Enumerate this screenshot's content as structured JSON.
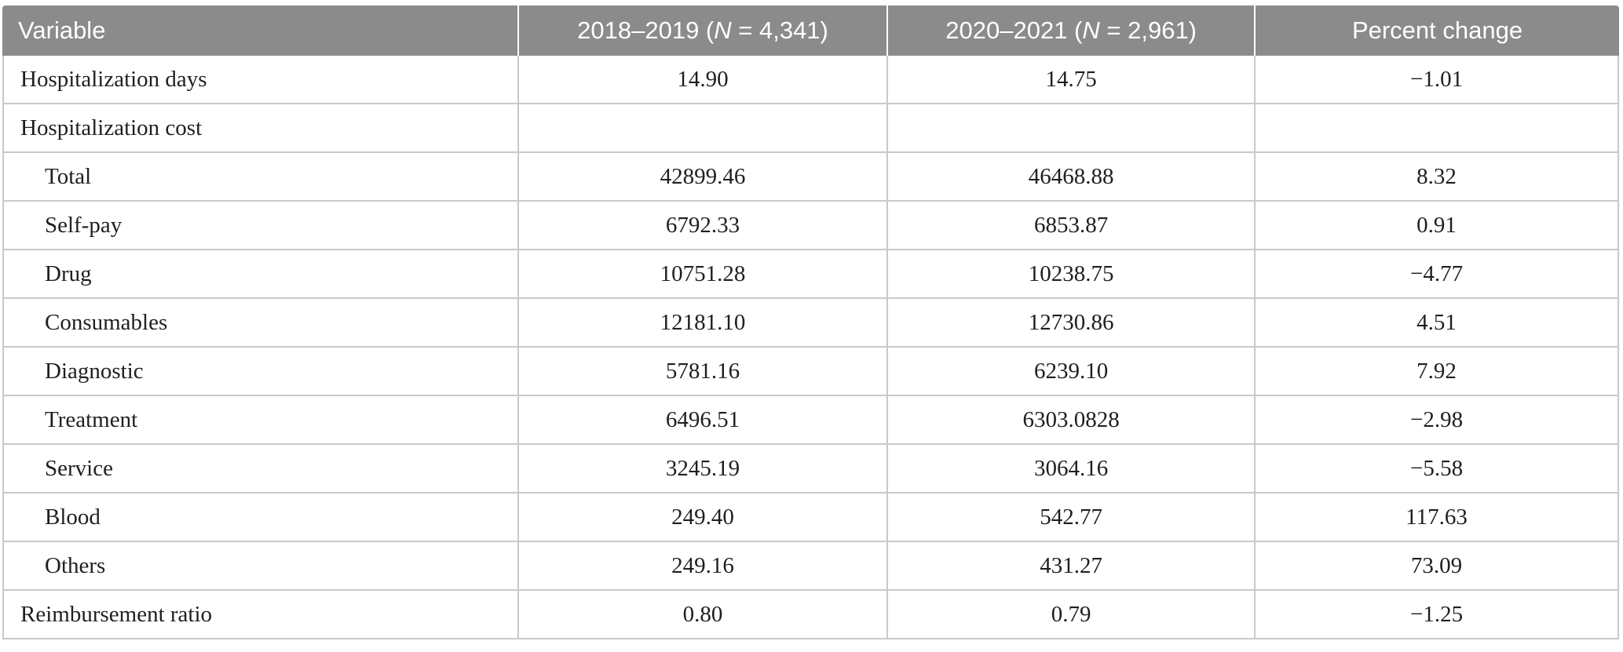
{
  "table": {
    "header": {
      "variable": "Variable",
      "col2018": {
        "prefix": "2018–2019 (",
        "n": "N",
        "suffix": " = 4,341)"
      },
      "col2020": {
        "prefix": "2020–2021 (",
        "n": "N",
        "suffix": " = 2,961)"
      },
      "percent_change": "Percent change"
    },
    "rows": [
      {
        "label": "Hospitalization days",
        "v2018": "14.90",
        "v2020": "14.75",
        "change": "−1.01"
      },
      {
        "label": "Hospitalization cost",
        "v2018": "",
        "v2020": "",
        "change": ""
      },
      {
        "label": "Total",
        "v2018": "42899.46",
        "v2020": "46468.88",
        "change": "8.32"
      },
      {
        "label": "Self-pay",
        "v2018": "6792.33",
        "v2020": "6853.87",
        "change": "0.91"
      },
      {
        "label": "Drug",
        "v2018": "10751.28",
        "v2020": "10238.75",
        "change": "−4.77"
      },
      {
        "label": "Consumables",
        "v2018": "12181.10",
        "v2020": "12730.86",
        "change": "4.51"
      },
      {
        "label": "Diagnostic",
        "v2018": "5781.16",
        "v2020": "6239.10",
        "change": "7.92"
      },
      {
        "label": "Treatment",
        "v2018": "6496.51",
        "v2020": "6303.0828",
        "change": "−2.98"
      },
      {
        "label": "Service",
        "v2018": "3245.19",
        "v2020": "3064.16",
        "change": "−5.58"
      },
      {
        "label": "Blood",
        "v2018": "249.40",
        "v2020": "542.77",
        "change": "117.63"
      },
      {
        "label": "Others",
        "v2018": "249.16",
        "v2020": "431.27",
        "change": "73.09"
      },
      {
        "label": "Reimbursement ratio",
        "v2018": "0.80",
        "v2020": "0.79",
        "change": "−1.25"
      }
    ],
    "colors": {
      "header_bg": "#8b8b8b",
      "header_text": "#ffffff",
      "grid_line": "#c9c9c9",
      "body_text": "#1f1f1f"
    }
  }
}
